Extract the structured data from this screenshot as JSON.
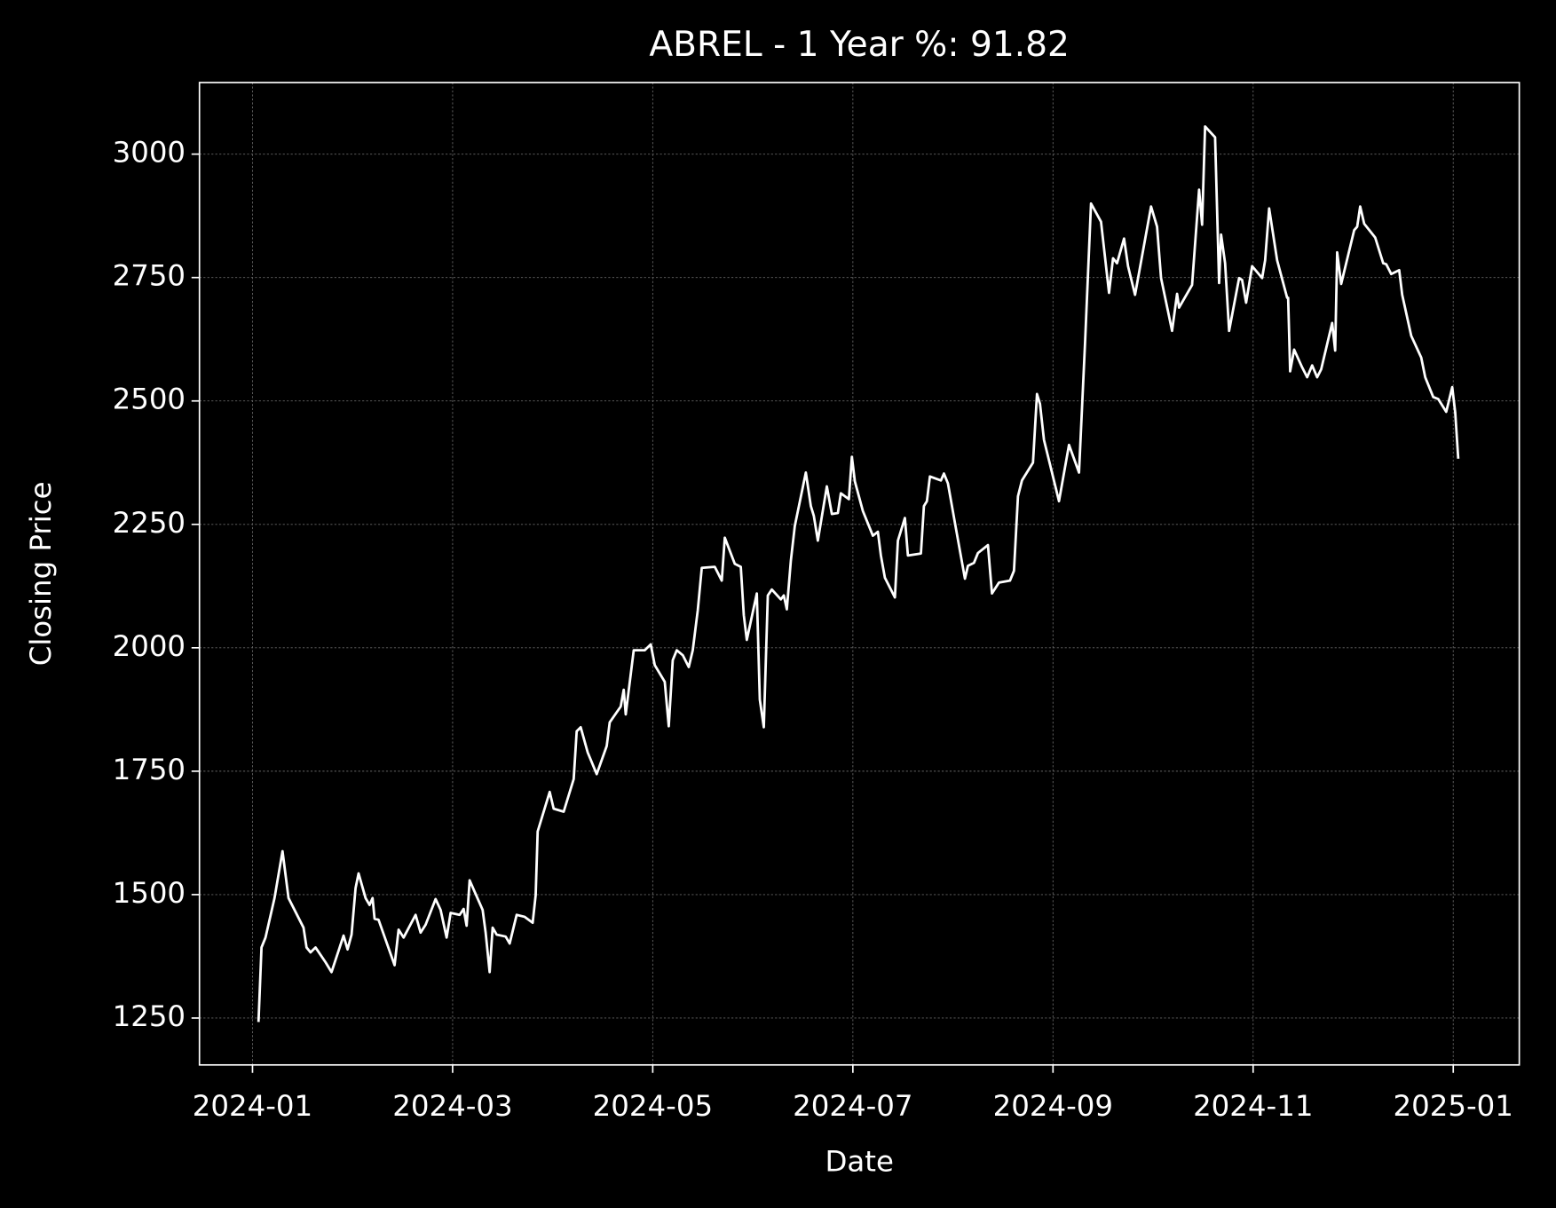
{
  "chart_data": {
    "type": "line",
    "title": "ABREL - 1 Year %: 91.82",
    "x_label": "Date",
    "y_label": "Closing Price",
    "color": "#ffffff",
    "grid": true,
    "xlim": [
      -0.53,
      12.66
    ],
    "ylim": [
      1155,
      3145
    ],
    "xticks": [
      {
        "value": 0,
        "label": "2024-01"
      },
      {
        "value": 2,
        "label": "2024-03"
      },
      {
        "value": 4,
        "label": "2024-05"
      },
      {
        "value": 6,
        "label": "2024-07"
      },
      {
        "value": 8,
        "label": "2024-09"
      },
      {
        "value": 10,
        "label": "2024-11"
      },
      {
        "value": 12,
        "label": "2025-01"
      }
    ],
    "yticks": [
      1250,
      1500,
      1750,
      2000,
      2250,
      2500,
      2750,
      3000
    ],
    "x": [
      0.06,
      0.09,
      0.13,
      0.22,
      0.3,
      0.36,
      0.46,
      0.51,
      0.54,
      0.58,
      0.63,
      0.73,
      0.79,
      0.91,
      0.95,
      0.99,
      1.03,
      1.06,
      1.13,
      1.17,
      1.2,
      1.22,
      1.26,
      1.42,
      1.46,
      1.51,
      1.63,
      1.68,
      1.73,
      1.83,
      1.88,
      1.94,
      1.98,
      2.07,
      2.11,
      2.14,
      2.17,
      2.3,
      2.33,
      2.37,
      2.4,
      2.44,
      2.53,
      2.57,
      2.64,
      2.72,
      2.8,
      2.83,
      2.85,
      2.97,
      3.01,
      3.11,
      3.21,
      3.24,
      3.28,
      3.35,
      3.44,
      3.54,
      3.57,
      3.68,
      3.71,
      3.73,
      3.81,
      3.92,
      3.98,
      4.02,
      4.12,
      4.16,
      4.2,
      4.24,
      4.3,
      4.36,
      4.4,
      4.45,
      4.49,
      4.62,
      4.69,
      4.72,
      4.82,
      4.88,
      4.91,
      4.94,
      5.04,
      5.07,
      5.11,
      5.15,
      5.19,
      5.28,
      5.31,
      5.34,
      5.38,
      5.42,
      5.53,
      5.58,
      5.61,
      5.65,
      5.74,
      5.79,
      5.85,
      5.88,
      5.96,
      5.99,
      6.02,
      6.1,
      6.2,
      6.25,
      6.28,
      6.32,
      6.42,
      6.45,
      6.52,
      6.55,
      6.68,
      6.71,
      6.74,
      6.77,
      6.88,
      6.91,
      6.95,
      7.02,
      7.12,
      7.15,
      7.21,
      7.25,
      7.35,
      7.39,
      7.46,
      7.57,
      7.61,
      7.65,
      7.69,
      7.8,
      7.84,
      7.87,
      7.91,
      8.06,
      8.16,
      8.26,
      8.32,
      8.38,
      8.48,
      8.56,
      8.6,
      8.64,
      8.71,
      8.75,
      8.82,
      8.98,
      9.04,
      9.08,
      9.19,
      9.24,
      9.26,
      9.39,
      9.46,
      9.49,
      9.52,
      9.62,
      9.66,
      9.68,
      9.72,
      9.76,
      9.86,
      9.89,
      9.93,
      9.99,
      10.09,
      10.12,
      10.16,
      10.24,
      10.34,
      10.35,
      10.37,
      10.41,
      10.49,
      10.54,
      10.59,
      10.64,
      10.68,
      10.79,
      10.82,
      10.84,
      10.88,
      11.01,
      11.04,
      11.07,
      11.11,
      11.22,
      11.3,
      11.33,
      11.38,
      11.46,
      11.49,
      11.58,
      11.68,
      11.72,
      11.8,
      11.85,
      11.93,
      11.99,
      12.02,
      12.05
    ],
    "values": [
      1242,
      1393,
      1413,
      1493,
      1588,
      1493,
      1453,
      1433,
      1393,
      1383,
      1393,
      1363,
      1343,
      1417,
      1389,
      1419,
      1513,
      1543,
      1493,
      1479,
      1493,
      1451,
      1449,
      1357,
      1429,
      1413,
      1459,
      1423,
      1439,
      1491,
      1469,
      1413,
      1463,
      1459,
      1471,
      1437,
      1529,
      1469,
      1423,
      1343,
      1433,
      1419,
      1415,
      1401,
      1459,
      1455,
      1443,
      1499,
      1628,
      1708,
      1674,
      1668,
      1734,
      1831,
      1839,
      1788,
      1744,
      1801,
      1849,
      1881,
      1915,
      1865,
      1995,
      1995,
      2007,
      1965,
      1931,
      1841,
      1975,
      1995,
      1985,
      1961,
      1995,
      2076,
      2162,
      2164,
      2136,
      2223,
      2170,
      2164,
      2066,
      2016,
      2110,
      1895,
      1839,
      2106,
      2118,
      2098,
      2106,
      2078,
      2176,
      2247,
      2355,
      2287,
      2267,
      2217,
      2327,
      2271,
      2273,
      2313,
      2301,
      2387,
      2337,
      2277,
      2227,
      2235,
      2187,
      2142,
      2102,
      2217,
      2263,
      2187,
      2191,
      2287,
      2297,
      2347,
      2339,
      2353,
      2333,
      2253,
      2140,
      2166,
      2172,
      2192,
      2208,
      2110,
      2132,
      2136,
      2156,
      2307,
      2339,
      2375,
      2514,
      2494,
      2421,
      2297,
      2411,
      2355,
      2616,
      2900,
      2863,
      2719,
      2789,
      2779,
      2829,
      2773,
      2715,
      2894,
      2853,
      2749,
      2642,
      2717,
      2689,
      2735,
      2928,
      2857,
      3056,
      3034,
      2739,
      2837,
      2779,
      2642,
      2749,
      2745,
      2699,
      2773,
      2749,
      2785,
      2890,
      2785,
      2709,
      2709,
      2560,
      2604,
      2568,
      2548,
      2572,
      2548,
      2564,
      2658,
      2602,
      2801,
      2737,
      2846,
      2853,
      2894,
      2859,
      2831,
      2779,
      2777,
      2757,
      2765,
      2715,
      2632,
      2588,
      2548,
      2508,
      2504,
      2478,
      2528,
      2476,
      2383
    ]
  }
}
